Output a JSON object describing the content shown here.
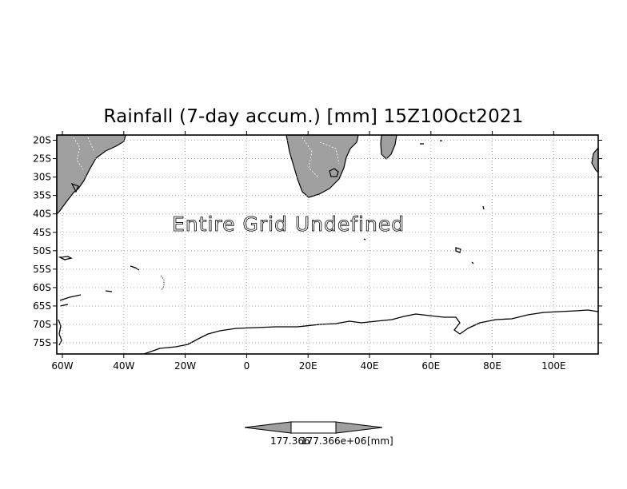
{
  "title": "Rainfall (7-day accum.) [mm] 15Z10Oct2021",
  "annotation": "Entire Grid Undefined",
  "map": {
    "lat_labels": [
      "20S",
      "25S",
      "30S",
      "35S",
      "40S",
      "45S",
      "50S",
      "55S",
      "60S",
      "65S",
      "70S",
      "75S"
    ],
    "lon_labels": [
      "60W",
      "40W",
      "20W",
      "0",
      "20E",
      "40E",
      "60E",
      "80E",
      "100E"
    ],
    "land_color": "#a0a0a0",
    "grid": "dotted"
  },
  "colorbar": {
    "left_value": "177.366",
    "right_value": "177.366e+06",
    "unit": "[mm]"
  }
}
